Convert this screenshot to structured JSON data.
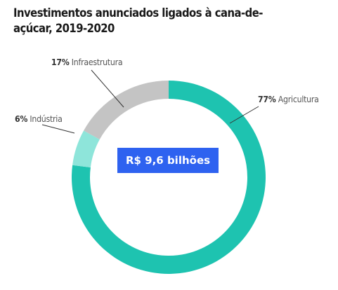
{
  "chart_data": {
    "type": "pie",
    "title": "Investimentos anunciados ligados à cana-de-açúcar, 2019-2020",
    "total_label": "R$ 9,6 bilhões",
    "slices": [
      {
        "name": "Agricultura",
        "value": 77,
        "label": "77%",
        "color": "#1ec3b0"
      },
      {
        "name": "Indústria",
        "value": 6,
        "label": "6%",
        "color": "#8ee5da"
      },
      {
        "name": "Infraestrutura",
        "value": 17,
        "label": "17%",
        "color": "#c4c4c4"
      }
    ]
  }
}
